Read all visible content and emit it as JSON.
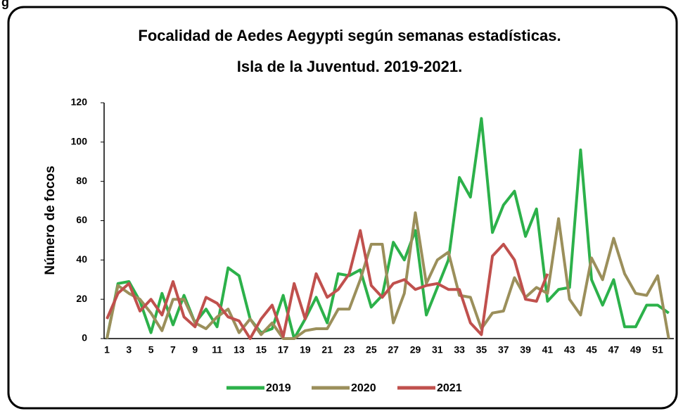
{
  "header_fragment": "g",
  "chart_data": {
    "type": "line",
    "title": "Focalidad de Aedes Aegypti según semanas estadísticas.",
    "subtitle": "Isla de la Juventud. 2019-2021.",
    "y_label": "Número de focos",
    "categories": [
      1,
      null,
      3,
      null,
      5,
      null,
      7,
      null,
      9,
      null,
      11,
      null,
      13,
      null,
      15,
      null,
      17,
      null,
      19,
      null,
      21,
      null,
      23,
      null,
      25,
      null,
      27,
      null,
      29,
      null,
      31,
      null,
      33,
      null,
      35,
      null,
      37,
      null,
      39,
      null,
      41,
      null,
      43,
      null,
      45,
      null,
      47,
      null,
      49,
      null,
      51,
      null
    ],
    "ylim": [
      0,
      120
    ],
    "yticks": [
      0,
      20,
      40,
      60,
      80,
      100,
      120
    ],
    "grid": false,
    "legend": "bottom",
    "series": [
      {
        "name": "2019",
        "color": "#2cb14a",
        "values": [
          0,
          28,
          29,
          19,
          3,
          23,
          7,
          22,
          8,
          15,
          6,
          36,
          32,
          10,
          3,
          5,
          22,
          0,
          10,
          21,
          8,
          33,
          32,
          35,
          16,
          22,
          49,
          40,
          55,
          12,
          26,
          40,
          82,
          72,
          112,
          54,
          68,
          75,
          52,
          66,
          19,
          25,
          26,
          96,
          30,
          17,
          30,
          6,
          6,
          17,
          17,
          13
        ]
      },
      {
        "name": "2020",
        "color": "#9b8f5b",
        "values": [
          0,
          27,
          23,
          20,
          13,
          4,
          20,
          20,
          8,
          5,
          11,
          15,
          3,
          10,
          2,
          8,
          0,
          0,
          4,
          5,
          5,
          15,
          15,
          30,
          48,
          48,
          8,
          23,
          64,
          28,
          40,
          44,
          22,
          21,
          5,
          13,
          14,
          31,
          21,
          26,
          23,
          61,
          20,
          12,
          41,
          30,
          51,
          33,
          23,
          22,
          32,
          0
        ]
      },
      {
        "name": "2021",
        "color": "#c0504d",
        "values": [
          10,
          23,
          28,
          14,
          20,
          12,
          29,
          11,
          6,
          21,
          18,
          11,
          9,
          0,
          10,
          17,
          1,
          28,
          10,
          33,
          21,
          25,
          33,
          55,
          27,
          21,
          28,
          30,
          25,
          27,
          28,
          25,
          25,
          8,
          2,
          42,
          48,
          40,
          20,
          19,
          33,
          null,
          null,
          null,
          null,
          null,
          null,
          null,
          null,
          null,
          null,
          null
        ]
      }
    ]
  }
}
